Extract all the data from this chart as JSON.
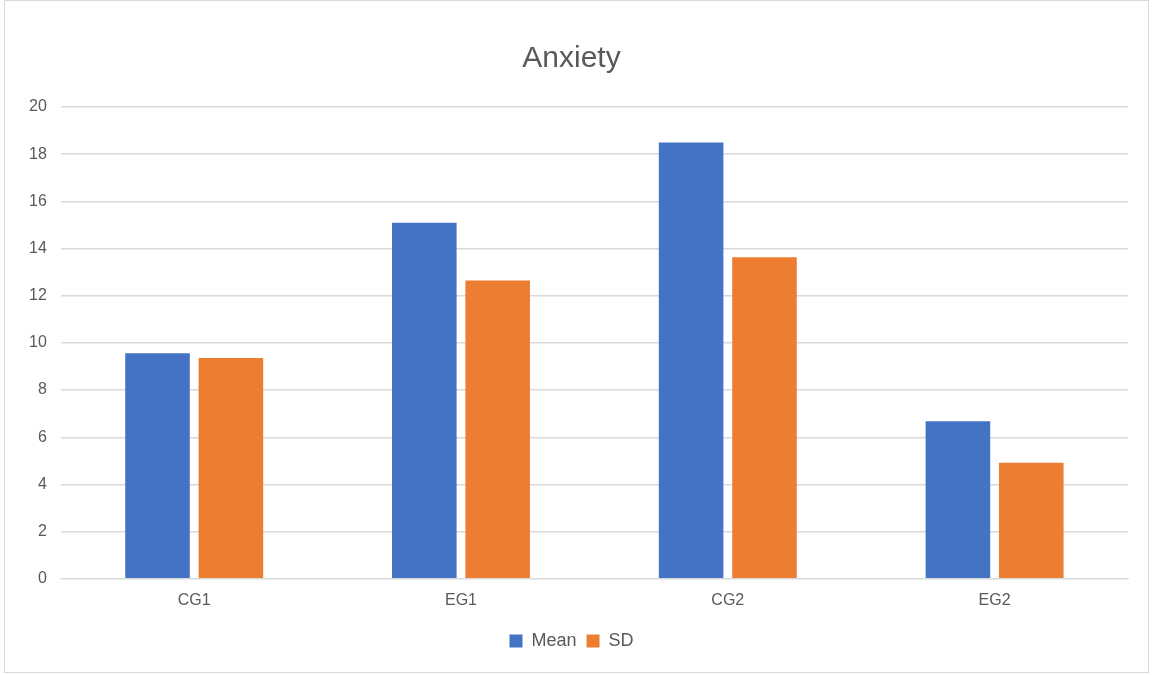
{
  "chart_data": {
    "type": "bar",
    "title": "Anxiety",
    "categories": [
      "CG1",
      "EG1",
      "CG2",
      "EG2"
    ],
    "series": [
      {
        "name": "Mean",
        "color": "#4472c4",
        "values": [
          9.56,
          15.09,
          18.49,
          6.68
        ]
      },
      {
        "name": "SD",
        "color": "#ed7d31",
        "values": [
          9.36,
          12.65,
          13.63,
          4.92
        ]
      }
    ],
    "ylim": [
      0,
      20
    ],
    "yticks": [
      0,
      2,
      4,
      6,
      8,
      10,
      12,
      14,
      16,
      18,
      20
    ],
    "grid": "y",
    "legend": "bottom"
  }
}
